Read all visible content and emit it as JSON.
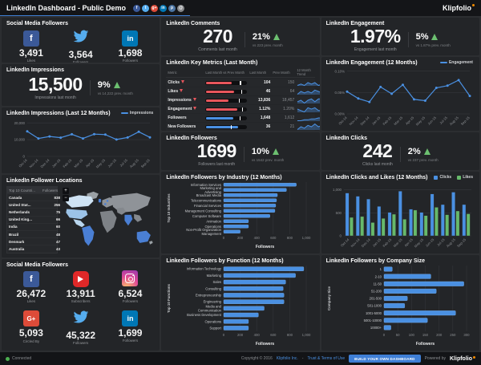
{
  "topbar": {
    "title": "LinkedIn Dashboard - Public Demo",
    "logo": "Klipfolio",
    "share_icons": [
      {
        "name": "facebook-share",
        "color": "#3b5998",
        "glyph": "f"
      },
      {
        "name": "twitter-share",
        "color": "#55acee",
        "glyph": "t"
      },
      {
        "name": "googleplus-share",
        "color": "#dd4b39",
        "glyph": "g+"
      },
      {
        "name": "linkedin-share",
        "color": "#0077b5",
        "glyph": "in"
      },
      {
        "name": "pinterest-share",
        "color": "#4c75a3",
        "glyph": "p"
      },
      {
        "name": "email-share",
        "color": "#87898c",
        "glyph": "@"
      }
    ]
  },
  "social_top": {
    "title": "Social Media Followers",
    "items": [
      {
        "network": "facebook",
        "value": "3,491",
        "label": "Likes"
      },
      {
        "network": "twitter",
        "value": "3,564",
        "label": "Followers"
      },
      {
        "network": "linkedin",
        "value": "1,698",
        "label": "Followers"
      }
    ]
  },
  "impressions": {
    "title": "LinkedIn Impressions",
    "value": "15,500",
    "label": "Impressions last month",
    "delta": "9%",
    "note": "vs 14,222 prev. month"
  },
  "comments": {
    "title": "LinkedIn Comments",
    "value": "270",
    "label": "Comments last month",
    "delta": "21%",
    "note": "vs 223 prev. month"
  },
  "followers": {
    "title": "LinkedIn Followers",
    "value": "1699",
    "label": "Followers last month",
    "delta": "10%",
    "note": "vs 1542 prev. month"
  },
  "engagement": {
    "title": "LinkedIn Engagement",
    "value": "1.97%",
    "label": "Engagement last month",
    "delta": "5%",
    "note": "vs 1.87% prev. month"
  },
  "clicks": {
    "title": "LinkedIn Clicks",
    "value": "242",
    "label": "Clicks last month",
    "delta": "2%",
    "note": "vs 237 prev. month"
  },
  "locations": {
    "title": "LinkedIn Follower Locations",
    "headers": [
      "Top 10 Countri...",
      "Followers"
    ],
    "rows": [
      [
        "Canada",
        "838"
      ],
      [
        "United Stat...",
        "256"
      ],
      [
        "Netherlands",
        "75"
      ],
      [
        "United King...",
        "66"
      ],
      [
        "India",
        "60"
      ],
      [
        "Brazil",
        "48"
      ],
      [
        "Denmark",
        "47"
      ],
      [
        "Australia",
        "43"
      ]
    ],
    "highlight_color": "#4a7fd4",
    "land_color": "#8f9398"
  },
  "social_bottom": {
    "title": "Social Media Followers",
    "items": [
      {
        "network": "facebook",
        "value": "26,472",
        "label": "Likes"
      },
      {
        "network": "youtube",
        "value": "13,911",
        "label": "Subscribers"
      },
      {
        "network": "instagram",
        "value": "6,524",
        "label": "Followers"
      },
      {
        "network": "googleplus",
        "value": "5,093",
        "label": "Circled By"
      },
      {
        "network": "twitter",
        "value": "45,322",
        "label": "Followers"
      },
      {
        "network": "linkedin",
        "value": "1,699",
        "label": "Followers"
      }
    ]
  },
  "chart_data": [
    {
      "id": "impressions_12mo",
      "type": "line",
      "title": "LinkedIn Impressions (Last 12 Months)",
      "legend": [
        "Impressions"
      ],
      "line_color": "#4a90e2",
      "x": [
        "Oct-14",
        "Nov-14",
        "Dec-14",
        "Jan-15",
        "Feb-15",
        "Mar-15",
        "Apr-15",
        "May-15",
        "Jun-15",
        "Jul-15",
        "Aug-15",
        "Sep-15"
      ],
      "values": [
        14900,
        10700,
        11900,
        11200,
        13200,
        10700,
        13300,
        13000,
        10100,
        11300,
        14700,
        11400
      ],
      "ylim": [
        0,
        22000
      ],
      "yticks": [
        0,
        10000,
        20000
      ],
      "ytick_labels": [
        "0",
        "10,000",
        "20,000"
      ]
    },
    {
      "id": "engagement_12mo",
      "type": "line",
      "title": "LinkedIn Engagement (12 Months)",
      "legend": [
        "Engagement"
      ],
      "line_color": "#4a90e2",
      "x": [
        "Oct-14",
        "Nov-14",
        "Dec-14",
        "Jan-15",
        "Feb-15",
        "Mar-15",
        "Apr-15",
        "May-15",
        "Jun-15",
        "Jul-15",
        "Aug-15",
        "Sep-15"
      ],
      "values": [
        0.052,
        0.036,
        0.028,
        0.063,
        0.047,
        0.068,
        0.034,
        0.031,
        0.061,
        0.066,
        0.079,
        0.042
      ],
      "ylim": [
        0,
        0.105
      ],
      "yticks": [
        0,
        0.05,
        0.1
      ],
      "ytick_labels": [
        "0.00%",
        "0.05%",
        "0.10%"
      ]
    },
    {
      "id": "industry",
      "type": "bar",
      "orientation": "horizontal",
      "title": "LinkedIn Followers by Industry (12 Months)",
      "ylabel": "Top 10 Industries",
      "xlabel": "Followers",
      "bar_color": "#4a90e2",
      "categories": [
        "Information Services",
        "Marketing and Advertising",
        "Broadcast Media",
        "Telecommunications",
        "Financial Services",
        "Management Consulting",
        "Computer Software",
        "Animation",
        "Operations",
        "Non-Profit Organization Management"
      ],
      "values": [
        880,
        760,
        650,
        640,
        630,
        620,
        560,
        300,
        300,
        200
      ],
      "xlim": [
        0,
        1000
      ],
      "xticks": [
        0,
        200,
        400,
        600,
        800,
        1000
      ],
      "xtick_labels": [
        "0",
        "200",
        "400",
        "600",
        "800",
        "1,000"
      ]
    },
    {
      "id": "function",
      "type": "bar",
      "orientation": "horizontal",
      "title": "LinkedIn Followers by Function (12 Months)",
      "ylabel": "Top 10 Functions",
      "xlabel": "Followers",
      "bar_color": "#4a90e2",
      "categories": [
        "Information Technology",
        "Marketing",
        "Sales",
        "Consulting",
        "Entrepreneurship",
        "Engineering",
        "Media and Communication",
        "Business Development",
        "Operations",
        "Support"
      ],
      "values": [
        970,
        870,
        750,
        720,
        730,
        730,
        490,
        420,
        300,
        300
      ],
      "xlim": [
        0,
        1000
      ],
      "xticks": [
        0,
        200,
        400,
        600,
        800,
        1000
      ],
      "xtick_labels": [
        "0",
        "200",
        "400",
        "600",
        "800",
        "1,000"
      ]
    },
    {
      "id": "clicks_likes",
      "type": "bar",
      "grouped": true,
      "title": "LinkedIn Clicks and Likes (12 Months)",
      "x": [
        "Oct-14",
        "Nov-14",
        "Dec-14",
        "Jan-15",
        "Feb-15",
        "Mar-15",
        "Apr-15",
        "May-15",
        "Jun-15",
        "Jul-15",
        "Aug-15",
        "Sep-15"
      ],
      "series": [
        {
          "name": "Clicks",
          "color": "#4a90e2",
          "values": [
            930,
            860,
            800,
            640,
            510,
            970,
            580,
            510,
            910,
            680,
            950,
            680
          ]
        },
        {
          "name": "Likes",
          "color": "#67b96b",
          "values": [
            400,
            420,
            290,
            380,
            470,
            360,
            560,
            440,
            620,
            460,
            540,
            480
          ]
        }
      ],
      "ylim": [
        0,
        1150
      ],
      "yticks": [
        0,
        500,
        1000
      ],
      "ytick_labels": [
        "0",
        "500",
        "1,000"
      ]
    },
    {
      "id": "company_size",
      "type": "bar",
      "orientation": "horizontal",
      "title": "LinkedIn Followers by Company Size",
      "ylabel": "Company Size",
      "xlabel": "Followers",
      "bar_color": "#4a90e2",
      "categories": [
        "1",
        "2-10",
        "11-50",
        "51-200",
        "201-500",
        "501-1000",
        "1001-5000",
        "5001-10000",
        "10000+"
      ],
      "values": [
        30,
        170,
        290,
        190,
        85,
        75,
        260,
        158,
        25
      ],
      "xlim": [
        0,
        300
      ],
      "xticks": [
        0,
        50,
        100,
        150,
        200,
        250,
        300
      ],
      "xtick_labels": [
        "0",
        "50",
        "100",
        "150",
        "200",
        "250",
        "300"
      ]
    },
    {
      "id": "key_metrics",
      "type": "table",
      "title": "LinkedIn Key Metrics (Last Month)",
      "columns": [
        "Metric",
        "Last Month vs Prev Month",
        "Last Month",
        "Prev Month",
        "12 Month Trend"
      ],
      "rows": [
        {
          "metric": "Clicks",
          "direction": "down",
          "bar_color": "#e8565c",
          "bar": 0.6,
          "target": 0.83,
          "last": "104",
          "prev": "150",
          "trend": [
            4,
            5,
            4,
            6,
            5,
            6,
            4,
            5,
            6,
            5,
            8,
            5
          ]
        },
        {
          "metric": "Likes",
          "direction": "down",
          "bar_color": "#e8565c",
          "bar": 0.66,
          "target": 0.85,
          "last": "46",
          "prev": "64",
          "trend": [
            3,
            5,
            4,
            5,
            4,
            6,
            5,
            4,
            7,
            5,
            6,
            4
          ]
        },
        {
          "metric": "Impressions",
          "direction": "down",
          "bar_color": "#e8565c",
          "bar": 0.54,
          "target": 0.8,
          "last": "13,836",
          "prev": "18,457",
          "trend": [
            4,
            5,
            3,
            5,
            6,
            4,
            6,
            6,
            4,
            5,
            7,
            5
          ]
        },
        {
          "metric": "Engagement",
          "direction": "down",
          "bar_color": "#e8565c",
          "bar": 0.74,
          "target": 0.88,
          "last": "1.12%",
          "prev": "1.20%",
          "trend": [
            5,
            4,
            3,
            6,
            5,
            6,
            4,
            4,
            6,
            6,
            7,
            4
          ]
        },
        {
          "metric": "Followers",
          "direction": "up",
          "bar_color": "#4a90e2",
          "bar": 0.64,
          "target": 0.82,
          "last": "1,648",
          "prev": "1,612",
          "trend": [
            2,
            2,
            3,
            3,
            4,
            4,
            5,
            5,
            6,
            6,
            7,
            8
          ]
        },
        {
          "metric": "New Followers",
          "direction": "up",
          "bar_color": "#4a90e2",
          "bar": 0.76,
          "target": 0.6,
          "last": "36",
          "prev": "21",
          "trend": [
            3,
            5,
            4,
            6,
            5,
            7,
            5,
            6,
            4,
            5,
            6,
            5
          ]
        }
      ]
    }
  ],
  "footer": {
    "status": "Connected",
    "copyright_prefix": "Copyright © 2016",
    "company_link": "Klipfolio Inc.",
    "separator": "-",
    "terms_link": "Trust & Terms of Use",
    "cta": "BUILD YOUR OWN DASHBOARD",
    "powered_by": "Powered by",
    "logo": "Klipfolio"
  }
}
